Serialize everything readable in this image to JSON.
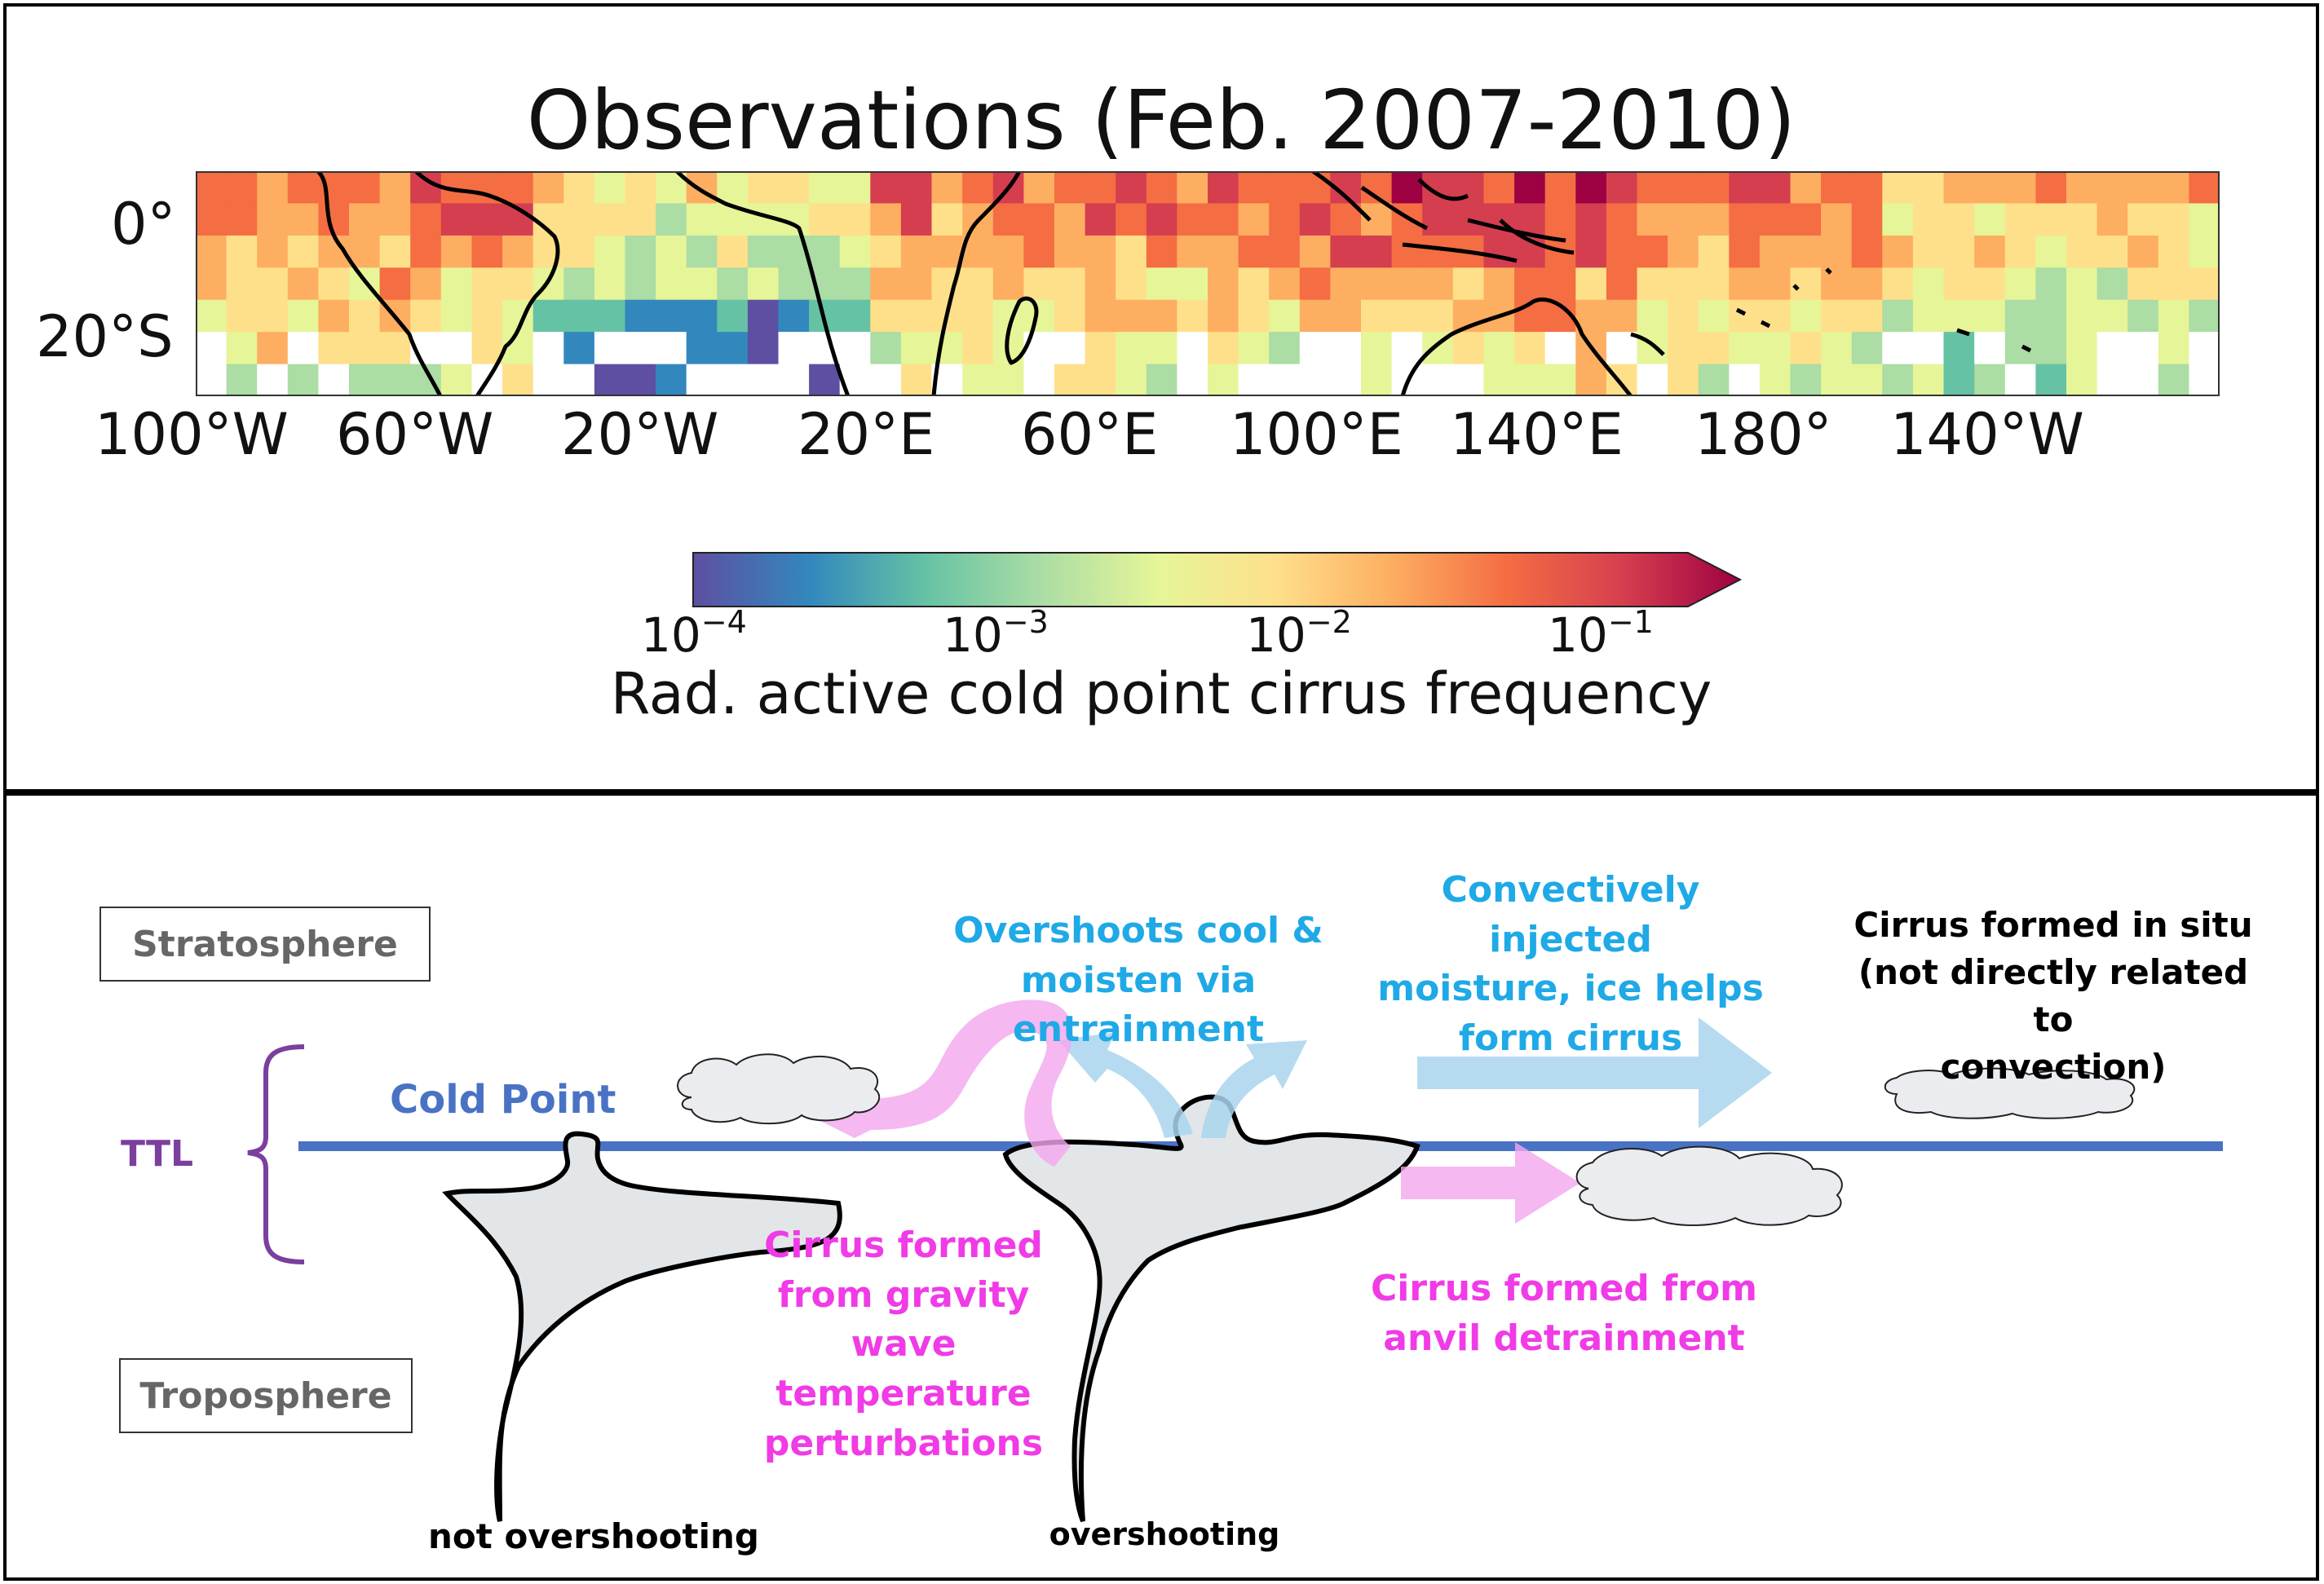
{
  "top_panel": {
    "title": "Observations (Feb. 2007-2010)",
    "lat_ticks": [
      "0°",
      "20°S"
    ],
    "lon_ticks": [
      "100°W",
      "60°W",
      "20°W",
      "20°E",
      "60°E",
      "100°E",
      "140°E",
      "180°",
      "140°W"
    ],
    "colorbar": {
      "ticks": [
        {
          "base": "10",
          "exp": "−4"
        },
        {
          "base": "10",
          "exp": "−3"
        },
        {
          "base": "10",
          "exp": "−2"
        },
        {
          "base": "10",
          "exp": "−1"
        }
      ],
      "label": "Rad. active cold point cirrus frequency",
      "colors": [
        "#5e4fa2",
        "#3288bd",
        "#66c2a5",
        "#abdda4",
        "#e6f598",
        "#fee08b",
        "#fdae61",
        "#f46d43",
        "#d53e4f",
        "#9e0142"
      ],
      "scale": "log"
    }
  },
  "bottom_panel": {
    "stratosphere_label": "Stratosphere",
    "troposphere_label": "Troposphere",
    "ttl_label": "TTL",
    "cold_point_label": "Cold Point",
    "overshoots_text": "Overshoots cool &\nmoisten via entrainment",
    "convective_text": "Convectively injected\nmoisture, ice helps\nform cirrus",
    "in_situ_text": "Cirrus formed in situ\n(not directly related to\nconvection)",
    "gravity_text": "Cirrus formed\nfrom gravity\nwave\ntemperature\nperturbations",
    "anvil_text": "Cirrus formed from\nanvil detrainment",
    "not_overshooting_label": "not overshooting",
    "overshooting_label": "overshooting",
    "colors": {
      "cyan_text": "#1fa9e6",
      "magenta_text": "#f03be6",
      "cold_point_line": "#4a72c4",
      "ttl_purple": "#7b3f9e",
      "blue_arrow": "#a9d5ee",
      "pink_arrow": "#f2a6ee"
    }
  }
}
